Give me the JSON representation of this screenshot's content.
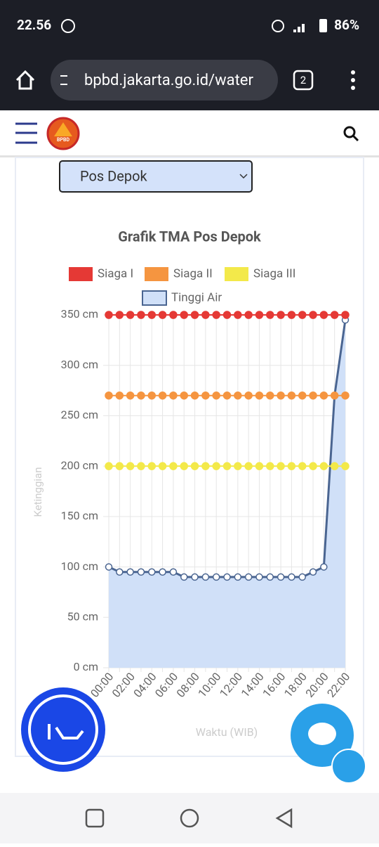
{
  "status_bar": {
    "time": "22.56",
    "battery": "86%"
  },
  "browser": {
    "url": "bpbd.jakarta.go.id/water",
    "tabs": "2"
  },
  "nav": {
    "logo": "BPBD"
  },
  "selector": {
    "selected": "Pos Depok"
  },
  "chart_data": {
    "type": "line",
    "title": "Grafik TMA Pos Depok",
    "y_label": "Ketinggian",
    "x_label": "Waktu (WIB)",
    "categories": [
      "00:00",
      null,
      "02:00",
      null,
      "04:00",
      null,
      "06:00",
      null,
      "08:00",
      null,
      "10:00",
      null,
      "12:00",
      null,
      "14:00",
      null,
      "16:00",
      null,
      "18:00",
      null,
      "20:00",
      null,
      "22:00"
    ],
    "ylim": [
      0,
      350
    ],
    "yticks": [
      {
        "value": 0,
        "label": "0 cm"
      },
      {
        "value": 50,
        "label": "50 cm"
      },
      {
        "value": 100,
        "label": "100 cm"
      },
      {
        "value": 150,
        "label": "150 cm"
      },
      {
        "value": 200,
        "label": "200 cm"
      },
      {
        "value": 250,
        "label": "250 cm"
      },
      {
        "value": 300,
        "label": "300 cm"
      },
      {
        "value": 350,
        "label": "350 cm"
      }
    ],
    "grid": true,
    "series": [
      {
        "name": "Siaga I",
        "color": "#e53935",
        "values": [
          350,
          350,
          350,
          350,
          350,
          350,
          350,
          350,
          350,
          350,
          350,
          350,
          350,
          350,
          350,
          350,
          350,
          350,
          350,
          350,
          350,
          350,
          350
        ]
      },
      {
        "name": "Siaga II",
        "color": "#f59540",
        "values": [
          270,
          270,
          270,
          270,
          270,
          270,
          270,
          270,
          270,
          270,
          270,
          270,
          270,
          270,
          270,
          270,
          270,
          270,
          270,
          270,
          270,
          270,
          270
        ]
      },
      {
        "name": "Siaga III",
        "color": "#f3e94a",
        "values": [
          200,
          200,
          200,
          200,
          200,
          200,
          200,
          200,
          200,
          200,
          200,
          200,
          200,
          200,
          200,
          200,
          200,
          200,
          200,
          200,
          200,
          200,
          200
        ]
      },
      {
        "name": "Tinggi Air",
        "color": "#4a6591",
        "fill_color": "#d0e0f8",
        "values": [
          100,
          95,
          95,
          95,
          95,
          95,
          95,
          90,
          90,
          90,
          90,
          90,
          90,
          90,
          90,
          90,
          90,
          90,
          90,
          95,
          100,
          270,
          345
        ]
      }
    ]
  }
}
